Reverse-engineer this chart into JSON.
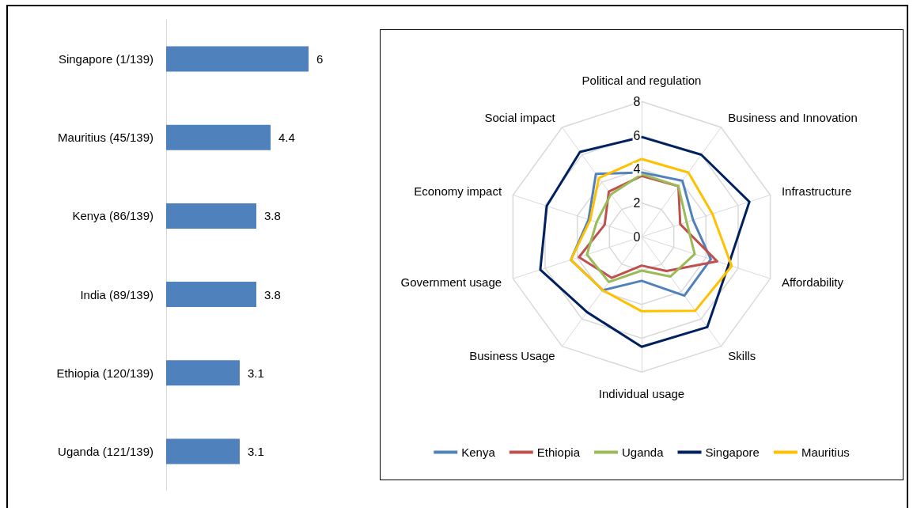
{
  "chart_data": [
    {
      "type": "bar",
      "orientation": "horizontal",
      "categories": [
        "Singapore (1/139)",
        "Mauritius (45/139)",
        "Kenya (86/139)",
        "India (89/139)",
        "Ethiopia (120/139)",
        "Uganda (121/139)"
      ],
      "values": [
        6,
        4.4,
        3.8,
        3.8,
        3.1,
        3.1
      ],
      "color": "#4f81bd",
      "data_labels": true
    },
    {
      "type": "radar",
      "categories": [
        "Political and regulation",
        "Business and Innovation",
        "Infrastructure",
        "Affordability",
        "Skills",
        "Individual usage",
        "Business Usage",
        "Government usage",
        "Economy impact",
        "Social impact"
      ],
      "ylim": [
        0,
        8
      ],
      "yticks": [
        0,
        2,
        4,
        6,
        8
      ],
      "legend": "bottom",
      "series": [
        {
          "name": "Kenya",
          "color": "#4f81bd",
          "values": [
            3.8,
            4.1,
            3.2,
            4.3,
            4.3,
            2.6,
            3.9,
            4.4,
            3.3,
            4.6
          ]
        },
        {
          "name": "Ethiopia",
          "color": "#c0504d",
          "values": [
            3.6,
            3.7,
            2.4,
            4.7,
            2.5,
            1.7,
            3.0,
            3.9,
            2.3,
            3.3
          ]
        },
        {
          "name": "Uganda",
          "color": "#9bbb59",
          "values": [
            3.7,
            3.7,
            2.8,
            3.3,
            2.9,
            2.0,
            3.3,
            3.4,
            2.8,
            3.1
          ]
        },
        {
          "name": "Singapore",
          "color": "#002060",
          "values": [
            5.9,
            6.0,
            6.7,
            5.4,
            6.6,
            6.5,
            5.5,
            6.3,
            5.9,
            6.2
          ]
        },
        {
          "name": "Mauritius",
          "color": "#ffc000",
          "values": [
            4.6,
            4.7,
            4.4,
            5.6,
            5.4,
            4.4,
            3.9,
            4.4,
            3.2,
            4.3
          ]
        }
      ]
    }
  ]
}
